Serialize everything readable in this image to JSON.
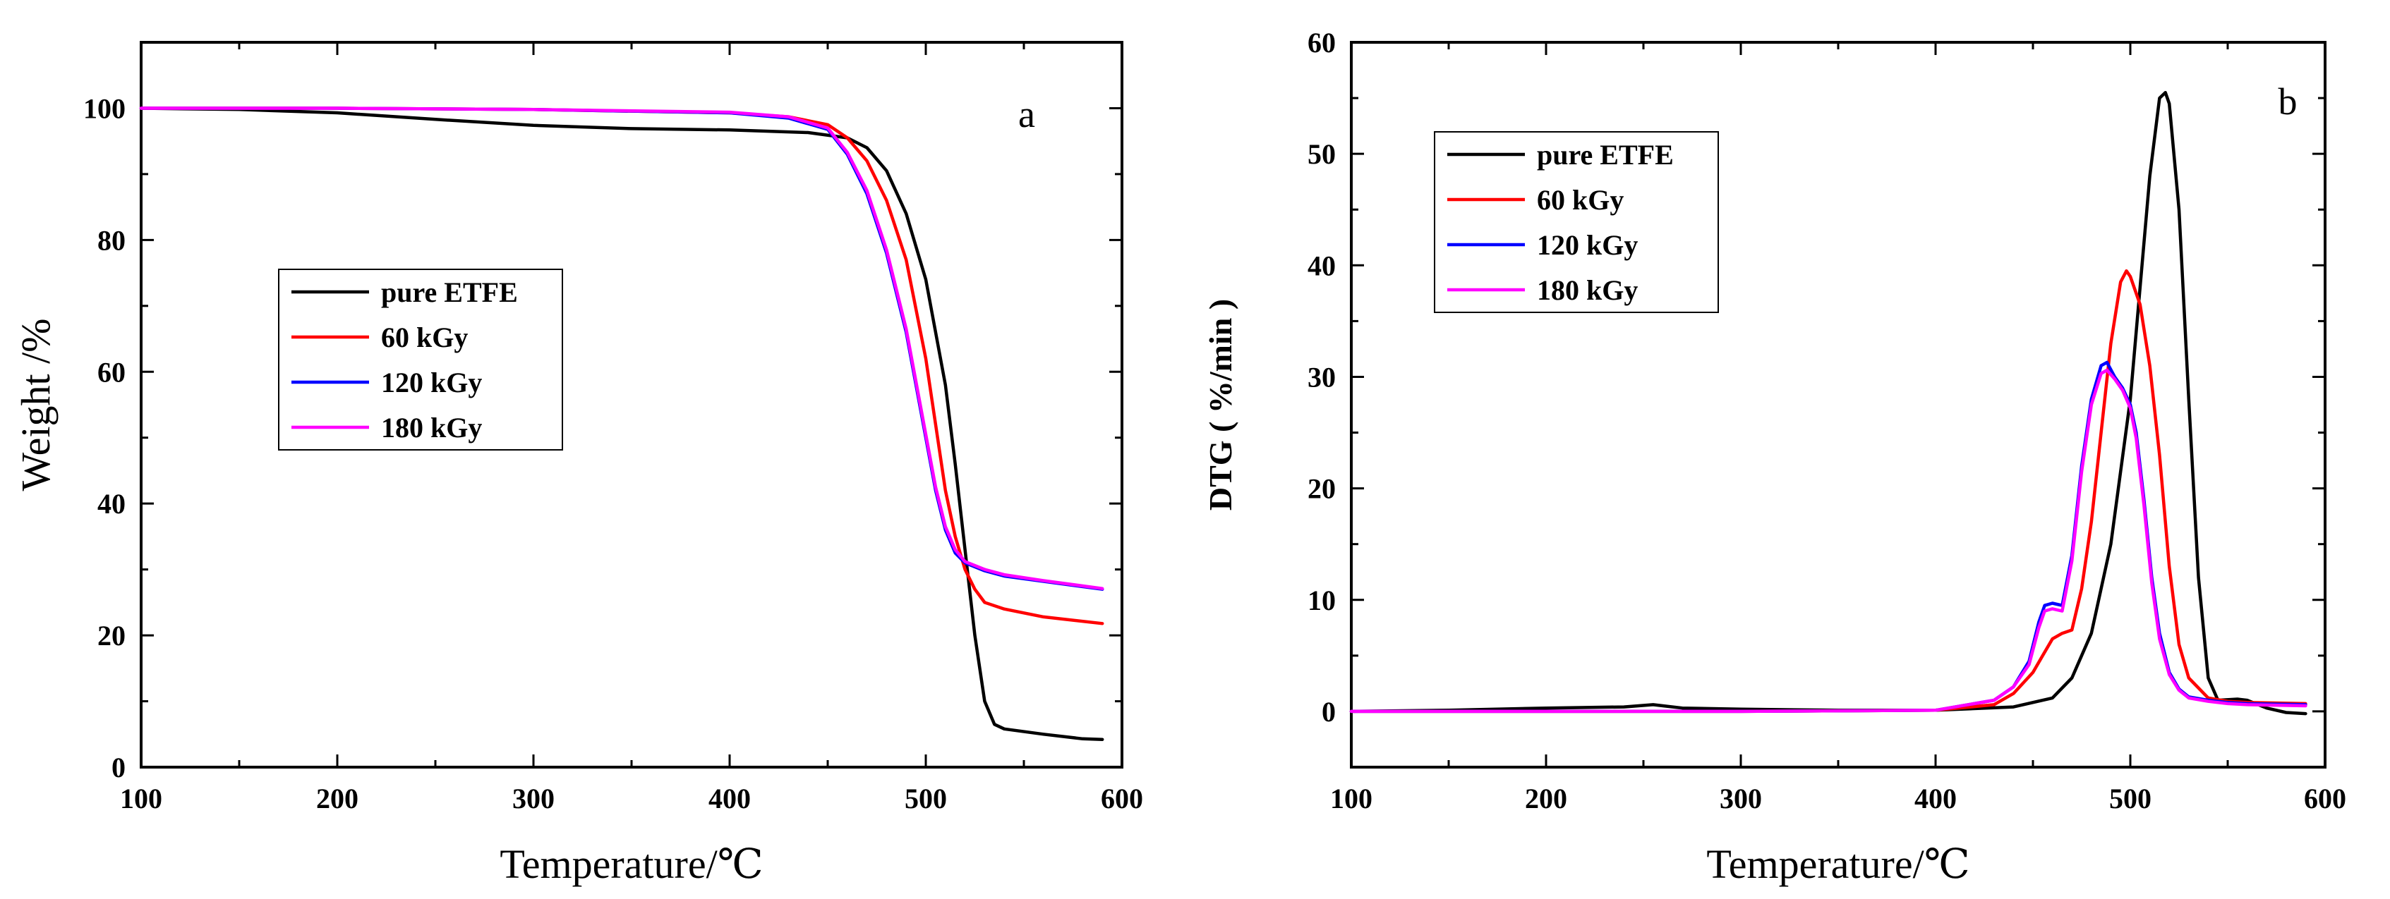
{
  "chart_data": [
    {
      "type": "line",
      "panel_label": "a",
      "title": "",
      "xlabel": "Temperature/℃",
      "ylabel": "Weight /%",
      "xlim": [
        100,
        600
      ],
      "ylim": [
        0,
        110
      ],
      "xticks": [
        100,
        200,
        300,
        400,
        500,
        600
      ],
      "yticks": [
        0,
        20,
        40,
        60,
        80,
        100
      ],
      "legend_position": "center-left",
      "series": [
        {
          "name": "pure ETFE",
          "color": "#000000",
          "x": [
            100,
            150,
            200,
            250,
            300,
            350,
            400,
            440,
            460,
            470,
            480,
            490,
            500,
            510,
            515,
            520,
            525,
            530,
            535,
            540,
            560,
            580,
            590
          ],
          "y": [
            100,
            99.8,
            99.3,
            98.3,
            97.4,
            96.9,
            96.7,
            96.3,
            95.5,
            94,
            90.5,
            84,
            74,
            58,
            46,
            33,
            20,
            10,
            6.5,
            5.8,
            5,
            4.3,
            4.2
          ]
        },
        {
          "name": "60 kGy",
          "color": "#ff0000",
          "x": [
            100,
            200,
            300,
            400,
            430,
            450,
            460,
            470,
            480,
            490,
            500,
            505,
            510,
            515,
            520,
            525,
            530,
            540,
            560,
            590
          ],
          "y": [
            100,
            100,
            99.8,
            99.3,
            98.7,
            97.5,
            95.5,
            92,
            86,
            77,
            62,
            52,
            42,
            35,
            30,
            27,
            25,
            24,
            22.8,
            21.8
          ]
        },
        {
          "name": "120 kGy",
          "color": "#0000ff",
          "x": [
            100,
            200,
            300,
            400,
            430,
            450,
            460,
            470,
            480,
            490,
            500,
            505,
            510,
            515,
            520,
            530,
            540,
            560,
            590
          ],
          "y": [
            100,
            100,
            99.8,
            99.3,
            98.5,
            96.8,
            93,
            87,
            78,
            66,
            50,
            42,
            36,
            32.5,
            31,
            29.8,
            29,
            28.2,
            27
          ]
        },
        {
          "name": "180 kGy",
          "color": "#ff00ff",
          "x": [
            100,
            200,
            300,
            400,
            430,
            450,
            460,
            470,
            480,
            490,
            500,
            505,
            510,
            515,
            520,
            530,
            540,
            560,
            590
          ],
          "y": [
            100,
            100,
            99.8,
            99.4,
            98.7,
            97,
            93.3,
            87.5,
            78.5,
            66.5,
            50.5,
            42.5,
            36.5,
            33,
            31.2,
            30,
            29.2,
            28.3,
            27.1
          ]
        }
      ]
    },
    {
      "type": "line",
      "panel_label": "b",
      "title": "",
      "xlabel": "Temperature/℃",
      "ylabel": "DTG ( %/min )",
      "xlim": [
        100,
        600
      ],
      "ylim": [
        -5,
        60
      ],
      "xticks": [
        100,
        200,
        300,
        400,
        500,
        600
      ],
      "yticks": [
        0,
        10,
        20,
        30,
        40,
        50,
        60
      ],
      "legend_position": "top-left",
      "series": [
        {
          "name": "pure ETFE",
          "color": "#000000",
          "x": [
            100,
            150,
            200,
            240,
            255,
            260,
            270,
            300,
            350,
            400,
            440,
            460,
            470,
            480,
            490,
            500,
            505,
            510,
            515,
            518,
            520,
            525,
            530,
            535,
            540,
            545,
            555,
            560,
            570,
            580,
            590
          ],
          "y": [
            0,
            0.1,
            0.3,
            0.4,
            0.6,
            0.5,
            0.3,
            0.2,
            0.1,
            0.1,
            0.4,
            1.2,
            3,
            7,
            15,
            28,
            38,
            48,
            55,
            55.5,
            54.5,
            45,
            28,
            12,
            3,
            1,
            1.1,
            1,
            0.3,
            -0.1,
            -0.2
          ]
        },
        {
          "name": "60 kGy",
          "color": "#ff0000",
          "x": [
            100,
            200,
            300,
            400,
            430,
            440,
            450,
            455,
            460,
            465,
            470,
            475,
            480,
            485,
            490,
            495,
            498,
            500,
            505,
            510,
            515,
            520,
            525,
            530,
            540,
            550,
            560,
            590
          ],
          "y": [
            0,
            0,
            0,
            0.1,
            0.6,
            1.6,
            3.5,
            5,
            6.5,
            7,
            7.3,
            11,
            17,
            25,
            33,
            38.5,
            39.5,
            39,
            36.5,
            31,
            23,
            13,
            6,
            3,
            1.2,
            0.9,
            0.8,
            0.7
          ]
        },
        {
          "name": "120 kGy",
          "color": "#0000ff",
          "x": [
            100,
            200,
            300,
            400,
            430,
            440,
            448,
            453,
            456,
            460,
            465,
            470,
            475,
            480,
            485,
            488,
            492,
            496,
            500,
            503,
            507,
            511,
            515,
            520,
            525,
            530,
            540,
            550,
            560,
            590
          ],
          "y": [
            0,
            0,
            0,
            0.1,
            1,
            2.2,
            4.5,
            8,
            9.5,
            9.7,
            9.5,
            14,
            22,
            28,
            31,
            31.3,
            30,
            29,
            27.5,
            25,
            19,
            12,
            7,
            3.5,
            2,
            1.3,
            1,
            0.8,
            0.7,
            0.6
          ]
        },
        {
          "name": "180 kGy",
          "color": "#ff00ff",
          "x": [
            100,
            200,
            300,
            400,
            430,
            440,
            448,
            453,
            456,
            460,
            465,
            470,
            475,
            480,
            485,
            488,
            492,
            496,
            500,
            503,
            507,
            511,
            515,
            520,
            525,
            530,
            540,
            550,
            560,
            590
          ],
          "y": [
            0,
            0,
            0,
            0.1,
            1,
            2.2,
            4.2,
            7.5,
            9,
            9.2,
            9,
            13.5,
            21.5,
            27.5,
            30.3,
            30.6,
            29.8,
            28.8,
            27.2,
            24.5,
            18.5,
            11.5,
            6.5,
            3.3,
            1.9,
            1.2,
            0.9,
            0.7,
            0.6,
            0.5
          ]
        }
      ]
    }
  ]
}
